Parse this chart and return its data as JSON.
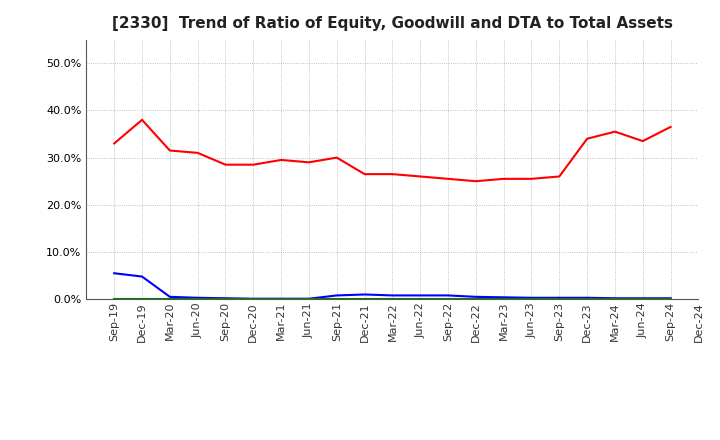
{
  "title": "[2330]  Trend of Ratio of Equity, Goodwill and DTA to Total Assets",
  "x_labels": [
    "Sep-19",
    "Dec-19",
    "Mar-20",
    "Jun-20",
    "Sep-20",
    "Dec-20",
    "Mar-21",
    "Jun-21",
    "Sep-21",
    "Dec-21",
    "Mar-22",
    "Jun-22",
    "Sep-22",
    "Dec-22",
    "Mar-23",
    "Jun-23",
    "Sep-23",
    "Dec-23",
    "Mar-24",
    "Jun-24",
    "Sep-24",
    "Dec-24"
  ],
  "equity": [
    33.0,
    38.0,
    31.5,
    31.0,
    28.5,
    28.5,
    29.5,
    29.0,
    30.0,
    26.5,
    26.5,
    26.0,
    25.5,
    25.0,
    25.5,
    25.5,
    26.0,
    34.0,
    35.5,
    33.5,
    36.5,
    null
  ],
  "goodwill": [
    5.5,
    4.8,
    0.5,
    0.3,
    0.2,
    0.1,
    0.1,
    0.1,
    0.8,
    1.0,
    0.8,
    0.8,
    0.8,
    0.5,
    0.4,
    0.3,
    0.3,
    0.3,
    0.2,
    0.2,
    0.2,
    null
  ],
  "dta": [
    0.05,
    0.05,
    0.05,
    0.05,
    0.05,
    0.05,
    0.05,
    0.05,
    0.05,
    0.05,
    0.05,
    0.05,
    0.05,
    0.05,
    0.05,
    0.05,
    0.05,
    0.05,
    0.05,
    0.05,
    0.05,
    null
  ],
  "equity_color": "#FF0000",
  "goodwill_color": "#0000FF",
  "dta_color": "#008000",
  "ylim": [
    0,
    55
  ],
  "yticks": [
    0,
    10,
    20,
    30,
    40,
    50
  ],
  "background_color": "#FFFFFF",
  "plot_bg_color": "#FFFFFF",
  "grid_color": "#999999",
  "title_fontsize": 11,
  "tick_fontsize": 8,
  "legend_fontsize": 9
}
